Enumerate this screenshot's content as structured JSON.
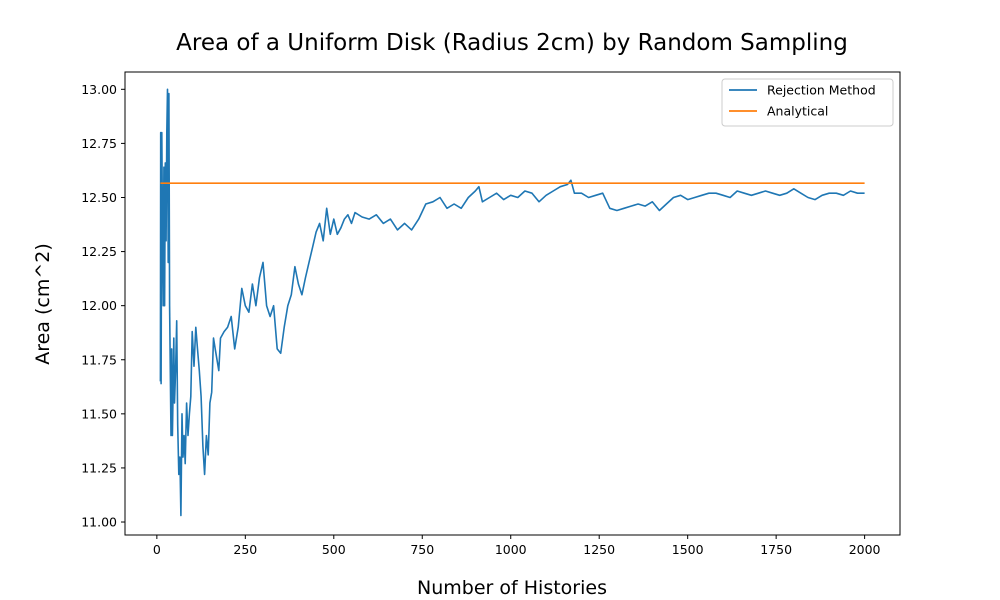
{
  "chart_data": {
    "type": "line",
    "title": "Area of a Uniform Disk (Radius 2cm) by Random Sampling",
    "xlabel": "Number of Histories",
    "ylabel": "Area (cm^2)",
    "xlim": [
      -90,
      2100
    ],
    "ylim": [
      10.94,
      13.08
    ],
    "xticks": [
      0,
      250,
      500,
      750,
      1000,
      1250,
      1500,
      1750,
      2000
    ],
    "yticks": [
      11.0,
      11.25,
      11.5,
      11.75,
      12.0,
      12.25,
      12.5,
      12.75,
      13.0
    ],
    "xtick_labels": [
      "0",
      "250",
      "500",
      "750",
      "1000",
      "1250",
      "1500",
      "1750",
      "2000"
    ],
    "ytick_labels": [
      "11.00",
      "11.25",
      "11.50",
      "11.75",
      "12.00",
      "12.25",
      "12.50",
      "12.75",
      "13.00"
    ],
    "grid": false,
    "legend": "top-right",
    "series": [
      {
        "name": "Rejection Method",
        "color": "#1f77b4",
        "x": [
          10,
          11,
          12,
          14,
          16,
          18,
          20,
          22,
          24,
          26,
          28,
          30,
          32,
          34,
          36,
          38,
          40,
          42,
          44,
          46,
          48,
          50,
          53,
          56,
          59,
          62,
          65,
          68,
          71,
          74,
          77,
          80,
          84,
          88,
          92,
          96,
          100,
          105,
          110,
          115,
          120,
          125,
          130,
          135,
          140,
          145,
          150,
          155,
          160,
          165,
          170,
          175,
          180,
          190,
          200,
          210,
          220,
          230,
          240,
          250,
          260,
          270,
          280,
          290,
          300,
          310,
          320,
          330,
          340,
          350,
          360,
          370,
          380,
          390,
          400,
          410,
          420,
          430,
          440,
          450,
          460,
          470,
          480,
          490,
          500,
          510,
          520,
          530,
          540,
          550,
          560,
          580,
          600,
          620,
          640,
          660,
          680,
          700,
          720,
          740,
          760,
          780,
          800,
          820,
          840,
          860,
          880,
          900,
          910,
          920,
          940,
          960,
          980,
          1000,
          1020,
          1040,
          1060,
          1080,
          1100,
          1120,
          1140,
          1160,
          1170,
          1180,
          1200,
          1220,
          1240,
          1260,
          1280,
          1300,
          1320,
          1340,
          1360,
          1380,
          1400,
          1420,
          1440,
          1460,
          1480,
          1500,
          1520,
          1540,
          1560,
          1580,
          1600,
          1620,
          1640,
          1660,
          1680,
          1700,
          1720,
          1740,
          1760,
          1780,
          1800,
          1820,
          1840,
          1860,
          1880,
          1900,
          1920,
          1940,
          1960,
          1980,
          2000
        ],
        "values": [
          11.65,
          12.8,
          11.64,
          12.8,
          12.35,
          12.0,
          12.64,
          12.0,
          12.66,
          12.3,
          12.8,
          13.0,
          12.2,
          12.98,
          12.0,
          11.7,
          11.4,
          11.8,
          11.4,
          11.6,
          11.85,
          11.55,
          11.7,
          11.93,
          11.45,
          11.22,
          11.3,
          11.03,
          11.5,
          11.3,
          11.4,
          11.27,
          11.55,
          11.4,
          11.5,
          11.58,
          11.88,
          11.72,
          11.9,
          11.8,
          11.7,
          11.58,
          11.35,
          11.22,
          11.4,
          11.31,
          11.55,
          11.6,
          11.85,
          11.8,
          11.75,
          11.7,
          11.85,
          11.88,
          11.9,
          11.95,
          11.8,
          11.9,
          12.08,
          12.0,
          11.97,
          12.1,
          12.0,
          12.13,
          12.2,
          12.0,
          11.95,
          12.0,
          11.8,
          11.78,
          11.9,
          12.0,
          12.05,
          12.18,
          12.1,
          12.05,
          12.13,
          12.2,
          12.27,
          12.34,
          12.38,
          12.3,
          12.45,
          12.33,
          12.4,
          12.33,
          12.36,
          12.4,
          12.42,
          12.38,
          12.43,
          12.41,
          12.4,
          12.42,
          12.38,
          12.4,
          12.35,
          12.38,
          12.35,
          12.4,
          12.47,
          12.48,
          12.5,
          12.45,
          12.47,
          12.45,
          12.5,
          12.53,
          12.55,
          12.48,
          12.5,
          12.52,
          12.49,
          12.51,
          12.5,
          12.53,
          12.52,
          12.48,
          12.51,
          12.53,
          12.55,
          12.56,
          12.58,
          12.52,
          12.52,
          12.5,
          12.51,
          12.52,
          12.45,
          12.44,
          12.45,
          12.46,
          12.47,
          12.46,
          12.48,
          12.44,
          12.47,
          12.5,
          12.51,
          12.49,
          12.5,
          12.51,
          12.52,
          12.52,
          12.51,
          12.5,
          12.53,
          12.52,
          12.51,
          12.52,
          12.53,
          12.52,
          12.51,
          12.52,
          12.54,
          12.52,
          12.5,
          12.49,
          12.51,
          12.52,
          12.52,
          12.51,
          12.53,
          12.52,
          12.52
        ]
      },
      {
        "name": "Analytical",
        "color": "#ff7f0e",
        "x": [
          10,
          2000
        ],
        "values": [
          12.566,
          12.566
        ]
      }
    ]
  }
}
